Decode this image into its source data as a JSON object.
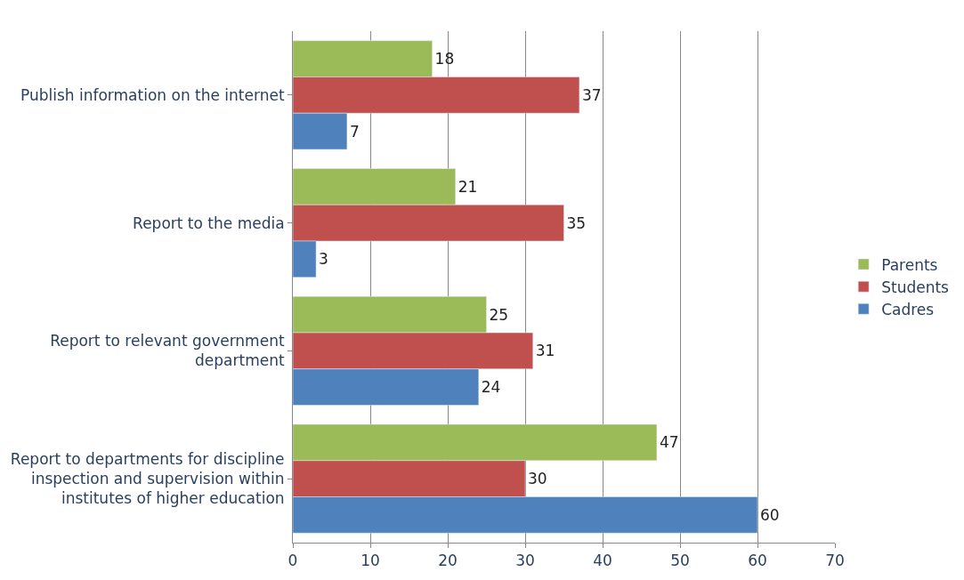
{
  "chart_data": {
    "type": "bar",
    "orientation": "horizontal",
    "categories": [
      "Publish information on the internet",
      "Report to the media",
      "Report to relevant government department",
      "Report to departments for discipline inspection and supervision within institutes of higher education"
    ],
    "series": [
      {
        "name": "Parents",
        "color": "#9bbb59",
        "values": [
          18,
          21,
          25,
          47
        ]
      },
      {
        "name": "Students",
        "color": "#c0504d",
        "values": [
          37,
          35,
          31,
          30
        ]
      },
      {
        "name": "Cadres",
        "color": "#4f81bd",
        "values": [
          7,
          3,
          24,
          60
        ]
      }
    ],
    "xlim": [
      0,
      70
    ],
    "xticks": [
      0,
      10,
      20,
      30,
      40,
      50,
      60,
      70
    ],
    "grid": "x",
    "legend": "right",
    "data_labels": true
  }
}
